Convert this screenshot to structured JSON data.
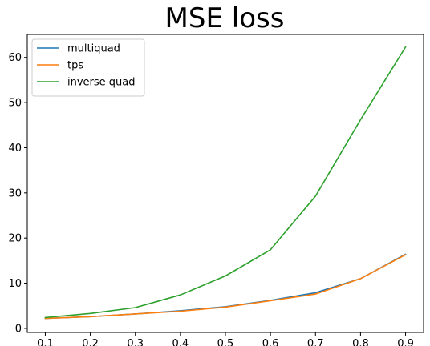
{
  "chart_data": {
    "type": "line",
    "title": "MSE loss",
    "xlabel": "",
    "ylabel": "",
    "x": [
      0.1,
      0.2,
      0.3,
      0.4,
      0.5,
      0.6,
      0.7,
      0.8,
      0.9
    ],
    "x_ticks": [
      "0.1",
      "0.2",
      "0.3",
      "0.4",
      "0.5",
      "0.6",
      "0.7",
      "0.8",
      "0.9"
    ],
    "y_ticks": [
      "0",
      "10",
      "20",
      "30",
      "40",
      "50",
      "60"
    ],
    "xlim": [
      0.06,
      0.94
    ],
    "ylim": [
      -0.9,
      65.1
    ],
    "grid": false,
    "legend_position": "upper-left",
    "series": [
      {
        "name": "multiquad",
        "color": "#1f77b4",
        "values": [
          2.2,
          2.6,
          3.2,
          3.9,
          4.8,
          6.2,
          7.9,
          11.0,
          16.4
        ]
      },
      {
        "name": "tps",
        "color": "#ff7f0e",
        "values": [
          2.2,
          2.6,
          3.2,
          3.8,
          4.7,
          6.1,
          7.6,
          11.0,
          16.3
        ]
      },
      {
        "name": "inverse quad",
        "color": "#2ca02c",
        "values": [
          2.4,
          3.3,
          4.6,
          7.4,
          11.6,
          17.4,
          29.3,
          46.2,
          62.3
        ]
      }
    ]
  }
}
